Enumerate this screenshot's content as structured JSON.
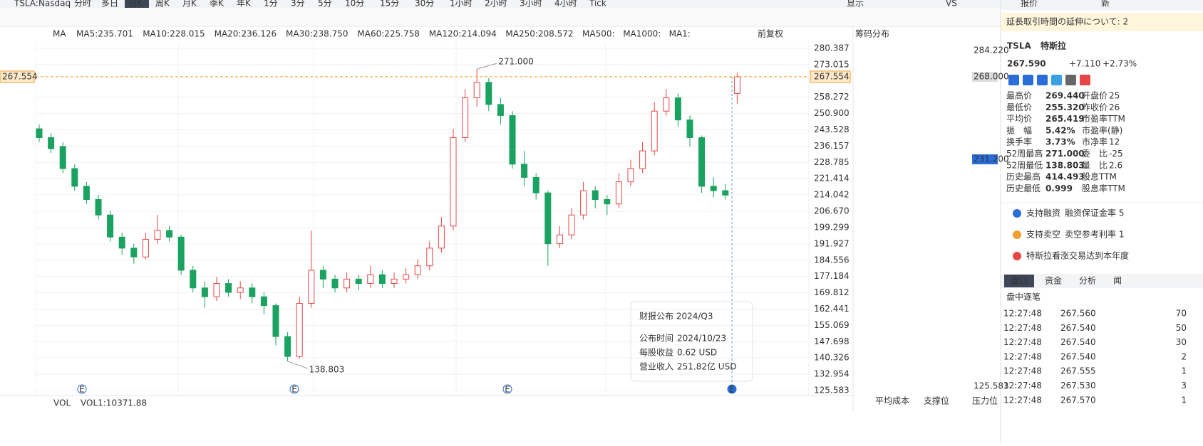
{
  "toolbar": {
    "symbol": "TSLA:Nasdaq",
    "periods": [
      "分时",
      "多日",
      "日K",
      "周K",
      "月K",
      "季K",
      "年K",
      "1分",
      "3分",
      "5分",
      "10分",
      "15分",
      "30分",
      "1小时",
      "2小时",
      "3小时",
      "4小时",
      "Tick"
    ],
    "active": "日K",
    "right": [
      "显示",
      "VS"
    ]
  },
  "ma_legend": {
    "label": "MA",
    "items": [
      {
        "text": "MA5:235.701",
        "color": "#f0a030"
      },
      {
        "text": "MA10:228.015",
        "color": "#3aa0e0"
      },
      {
        "text": "MA20:236.126",
        "color": "#d070d0"
      },
      {
        "text": "MA30:238.750",
        "color": "#3a70c0"
      },
      {
        "text": "MA60:225.758",
        "color": "#30b070"
      },
      {
        "text": "MA120:214.094",
        "color": "#e04848"
      },
      {
        "text": "MA250:208.572",
        "color": "#30c8d0"
      },
      {
        "text": "MA500:",
        "color": "#f5d8a0"
      },
      {
        "text": "MA1000:",
        "color": "#d8b8e8"
      },
      {
        "text": "MA1:",
        "color": "#c8c8c8"
      }
    ]
  },
  "adjust": "前复权",
  "chart_data": {
    "type": "candlestick",
    "up_color": "#e84545",
    "down_color": "#1aa260",
    "candles": [
      [
        244,
        246,
        238,
        240
      ],
      [
        240,
        242,
        233,
        235
      ],
      [
        236,
        238,
        224,
        226
      ],
      [
        226,
        228,
        216,
        218
      ],
      [
        218,
        220,
        210,
        212
      ],
      [
        212,
        214,
        203,
        205
      ],
      [
        205,
        207,
        193,
        195
      ],
      [
        195,
        197,
        187,
        190
      ],
      [
        190,
        192,
        183,
        186
      ],
      [
        186,
        197,
        185,
        194
      ],
      [
        194,
        205,
        192,
        198
      ],
      [
        198,
        200,
        193,
        195
      ],
      [
        195,
        196,
        178,
        180
      ],
      [
        180,
        182,
        170,
        172
      ],
      [
        172,
        175,
        163,
        168
      ],
      [
        168,
        177,
        166,
        174
      ],
      [
        174,
        176,
        168,
        170
      ],
      [
        170,
        175,
        167,
        172
      ],
      [
        172,
        174,
        165,
        168
      ],
      [
        168,
        170,
        160,
        164
      ],
      [
        164,
        165,
        146,
        150
      ],
      [
        150,
        152,
        138.803,
        141
      ],
      [
        141,
        168,
        140,
        165
      ],
      [
        165,
        198,
        163,
        180
      ],
      [
        180,
        182,
        172,
        176
      ],
      [
        176,
        178,
        170,
        172
      ],
      [
        172,
        179,
        170,
        176
      ],
      [
        176,
        178,
        171,
        174
      ],
      [
        174,
        182,
        172,
        178
      ],
      [
        178,
        180,
        172,
        174
      ],
      [
        174,
        179,
        172,
        176
      ],
      [
        176,
        181,
        174,
        178
      ],
      [
        178,
        185,
        176,
        182
      ],
      [
        182,
        193,
        180,
        190
      ],
      [
        190,
        204,
        188,
        200
      ],
      [
        200,
        244,
        198,
        240
      ],
      [
        240,
        262,
        238,
        258
      ],
      [
        258,
        271,
        254,
        265
      ],
      [
        265,
        267,
        252,
        255
      ],
      [
        255,
        258,
        246,
        250
      ],
      [
        250,
        252,
        226,
        228
      ],
      [
        228,
        234,
        218,
        222
      ],
      [
        222,
        224,
        212,
        215
      ],
      [
        215,
        216,
        182,
        192
      ],
      [
        192,
        200,
        190,
        196
      ],
      [
        196,
        208,
        194,
        205
      ],
      [
        205,
        220,
        203,
        216
      ],
      [
        216,
        218,
        208,
        212
      ],
      [
        212,
        214,
        205,
        210
      ],
      [
        210,
        224,
        208,
        220
      ],
      [
        220,
        230,
        218,
        226
      ],
      [
        226,
        238,
        224,
        234
      ],
      [
        234,
        256,
        232,
        252
      ],
      [
        252,
        262,
        250,
        258
      ],
      [
        258,
        260,
        245,
        248
      ],
      [
        248,
        250,
        236,
        240
      ],
      [
        240,
        241,
        215,
        218
      ],
      [
        218,
        222,
        213,
        216
      ],
      [
        216,
        219,
        212,
        214
      ],
      [
        260,
        269.44,
        255.32,
        267.554
      ]
    ],
    "ylim": [
      125.583,
      280.387
    ],
    "yticks": [
      280.387,
      273.015,
      258.272,
      {
        "value": 250.9,
        "label": "250.900"
      },
      243.528,
      236.157,
      228.785,
      221.414,
      214.042,
      {
        "value": 206.67,
        "label": "206.670"
      },
      199.299,
      191.927,
      184.556,
      177.184,
      169.812,
      162.441,
      155.069,
      147.698,
      140.326,
      132.954,
      125.583
    ],
    "current": 267.554,
    "annotations": [
      {
        "text": "271.000",
        "index": 37
      },
      {
        "text": "138.803",
        "index": 21
      }
    ],
    "events": [
      "E",
      "E",
      "E",
      "E"
    ]
  },
  "tooltip": {
    "title": "财报公布 2024/Q3",
    "rows": [
      [
        "公布时间",
        "2024/10/23"
      ],
      [
        "每股收益",
        "0.62 USD"
      ],
      [
        "营业收入",
        "251.82亿 USD"
      ]
    ]
  },
  "volume": {
    "label": "VOL",
    "value": "VOL1:10371.88"
  },
  "chips": {
    "title": "筹码分布",
    "labels": [
      "284.220",
      "268.000",
      "231.200",
      "125.583"
    ],
    "legend": [
      "平均成本",
      "支撑位",
      "压力位"
    ]
  },
  "quote": {
    "tabs": [
      "报价",
      "新"
    ],
    "banner": "延長取引時間の延伸について: 2",
    "symbol": "TSLA",
    "name": "特斯拉",
    "price": "267.590",
    "change": "+7.110",
    "pct": "+2.73%",
    "stats": [
      [
        "最高价",
        "269.440",
        "开盘价",
        "25"
      ],
      [
        "最低价",
        "255.320",
        "昨收价",
        "26"
      ],
      [
        "平均价",
        "265.419",
        "市盈率TTM",
        ""
      ],
      [
        "振　幅",
        "5.42%",
        "市盈率(静)",
        ""
      ],
      [
        "换手率",
        "3.73%",
        "市净率",
        "12"
      ],
      [
        "52周最高",
        "271.000",
        "委　比",
        "-25"
      ],
      [
        "52周最低",
        "138.803",
        "量　比",
        "2.6"
      ],
      [
        "历史最高",
        "414.493",
        "股息TTM",
        ""
      ],
      [
        "历史最低",
        "0.999",
        "股息率TTM",
        ""
      ]
    ],
    "features": [
      [
        "支持融资",
        "融资保证金率 5"
      ],
      [
        "支持卖空",
        "卖空参考利率 1"
      ],
      [
        "特斯拉看涨交易达到本年度",
        ""
      ]
    ],
    "panel_tabs": [
      "盘口",
      "资金",
      "分析",
      "闻"
    ],
    "ticks_title": "盘中逐笔",
    "trades": [
      [
        "12:27:48",
        "267.560",
        "70"
      ],
      [
        "12:27:48",
        "267.540",
        "50"
      ],
      [
        "12:27:48",
        "267.540",
        "30"
      ],
      [
        "12:27:48",
        "267.540",
        "2"
      ],
      [
        "12:27:48",
        "267.555",
        "1"
      ],
      [
        "12:27:48",
        "267.530",
        "3"
      ],
      [
        "12:27:48",
        "267.570",
        "1"
      ]
    ]
  }
}
